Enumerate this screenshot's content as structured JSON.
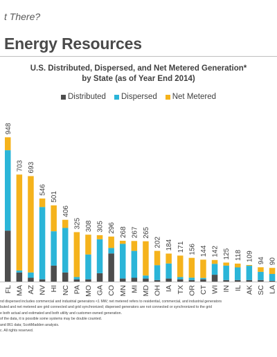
{
  "header": {
    "top_title": "t There?",
    "section_title": "Energy Resources"
  },
  "notes": [
    "nd dispersed includes commercial and industrial generators <1 MW; net metered refers to residential, commercial, and industrial generators",
    "buted and net metered are grid connected and grid synchronized; dispersed generators are not connected or synchronized to the grid",
    "e both actual and estimated and both utility and customer-owned generation.",
    "of the data, it is possible some systems may be double counted.",
    "and 861 data; ScottMadden analysis.",
    "c. All rights reserved."
  ],
  "chart_data": {
    "type": "bar",
    "stacked": true,
    "title": [
      "U.S. Distributed, Dispersed, and Net Metered Generation*",
      "by State (as of Year End 2014)"
    ],
    "legend_position": "top",
    "categories": [
      "FL",
      "MA",
      "AZ",
      "NV",
      "HI",
      "NC",
      "PA",
      "MO",
      "GA",
      "CO",
      "MN",
      "MI",
      "MD",
      "OH",
      "IA",
      "TX",
      "OR",
      "CT",
      "WI",
      "IN",
      "IL",
      "AK",
      "SC",
      "LA"
    ],
    "totals": [
      948,
      703,
      693,
      546,
      501,
      406,
      325,
      308,
      305,
      296,
      268,
      267,
      265,
      202,
      184,
      171,
      156,
      144,
      142,
      125,
      118,
      109,
      94,
      90
    ],
    "total_labels": [
      "948",
      "703",
      "693",
      "546",
      "501",
      "406",
      "325",
      "308",
      "305",
      "296",
      "268",
      "267",
      "265",
      "202",
      "184",
      "171",
      "156",
      "144",
      "142",
      "125",
      "118",
      "109",
      "94",
      "90"
    ],
    "series": [
      {
        "name": "Distributed",
        "color": "#4d4d4d",
        "values": [
          335,
          60,
          25,
          15,
          105,
          60,
          15,
          15,
          55,
          185,
          20,
          25,
          20,
          10,
          20,
          15,
          10,
          15,
          45,
          10,
          10,
          10,
          10,
          5
        ]
      },
      {
        "name": "Dispersed",
        "color": "#2bb5d8",
        "values": [
          528,
          13,
          35,
          475,
          226,
          293,
          15,
          163,
          223,
          36,
          228,
          177,
          20,
          98,
          99,
          15,
          16,
          9,
          72,
          95,
          83,
          94,
          54,
          45
        ]
      },
      {
        "name": "Net Metered",
        "color": "#f5b31c",
        "values": [
          85,
          630,
          633,
          56,
          170,
          53,
          295,
          130,
          27,
          75,
          20,
          65,
          225,
          94,
          65,
          141,
          130,
          120,
          25,
          20,
          25,
          5,
          30,
          40
        ]
      }
    ],
    "ylim": [
      0,
      1000
    ],
    "grid": false
  }
}
